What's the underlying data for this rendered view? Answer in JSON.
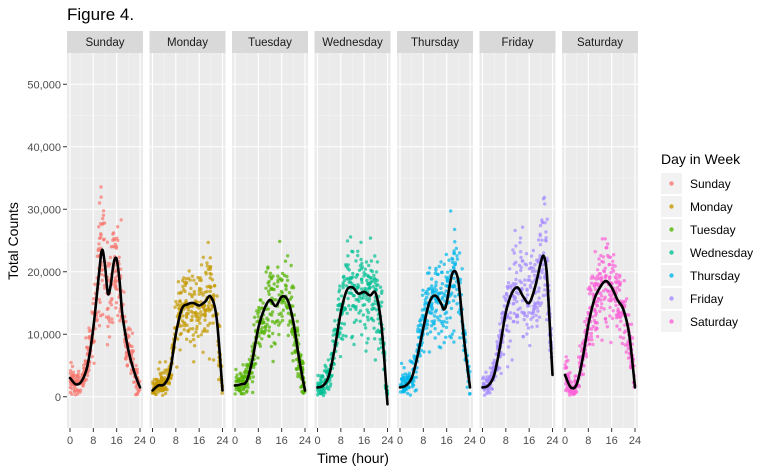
{
  "chart_data": {
    "type": "scatter",
    "title": "Figure 4.",
    "xlabel": "Time (hour)",
    "ylabel": "Total Counts",
    "xlim": [
      0,
      24
    ],
    "ylim": [
      -5000,
      55000
    ],
    "x_ticks": [
      0,
      8,
      16,
      24
    ],
    "x_tick_labels": [
      "0",
      "8",
      "16",
      "24"
    ],
    "y_ticks": [
      0,
      10000,
      20000,
      30000,
      40000,
      50000
    ],
    "y_tick_labels": [
      "0",
      "10,000",
      "20,000",
      "30,000",
      "40,000",
      "50,000"
    ],
    "grid": true,
    "facet_by": "Day in Week",
    "legend": {
      "title": "Day in Week",
      "position": "right",
      "entries": [
        "Sunday",
        "Monday",
        "Tuesday",
        "Wednesday",
        "Thursday",
        "Friday",
        "Saturday"
      ]
    },
    "series": [
      {
        "name": "Sunday",
        "color": "#F8766D",
        "x": [
          0,
          2,
          4,
          6,
          8,
          10,
          11,
          12,
          13,
          14,
          15,
          16,
          17,
          18,
          20,
          22,
          24
        ],
        "y": [
          3000,
          2000,
          2500,
          5000,
          11000,
          20000,
          23500,
          21000,
          16500,
          18000,
          21500,
          22000,
          18500,
          13000,
          7500,
          4000,
          1500
        ]
      },
      {
        "name": "Monday",
        "color": "#C49A00",
        "x": [
          0,
          2,
          4,
          6,
          8,
          10,
          12,
          14,
          16,
          18,
          20,
          22,
          24
        ],
        "y": [
          1000,
          1800,
          2000,
          4000,
          10000,
          14000,
          14800,
          15000,
          14600,
          15200,
          16000,
          12500,
          1000
        ]
      },
      {
        "name": "Tuesday",
        "color": "#53B400",
        "x": [
          0,
          2,
          4,
          6,
          8,
          10,
          12,
          14,
          16,
          18,
          20,
          22,
          24
        ],
        "y": [
          1800,
          2000,
          2500,
          6000,
          11000,
          14000,
          15500,
          14500,
          16000,
          15500,
          12000,
          6000,
          1000
        ]
      },
      {
        "name": "Wednesday",
        "color": "#00C094",
        "x": [
          0,
          2,
          4,
          6,
          8,
          10,
          12,
          14,
          16,
          18,
          20,
          22,
          24
        ],
        "y": [
          1500,
          1800,
          3500,
          8000,
          13500,
          17000,
          17500,
          16500,
          16800,
          16200,
          16500,
          11000,
          -1200
        ]
      },
      {
        "name": "Thursday",
        "color": "#00B6EB",
        "x": [
          0,
          2,
          4,
          6,
          8,
          10,
          12,
          14,
          15,
          16,
          18,
          20,
          22,
          24
        ],
        "y": [
          1500,
          1800,
          3000,
          6500,
          11000,
          15000,
          16200,
          15000,
          14000,
          15000,
          19800,
          18500,
          9000,
          1500
        ]
      },
      {
        "name": "Friday",
        "color": "#A58AFF",
        "x": [
          0,
          2,
          4,
          6,
          8,
          10,
          12,
          14,
          16,
          18,
          20,
          21,
          22,
          23,
          24
        ],
        "y": [
          1500,
          1800,
          3500,
          8000,
          13500,
          16500,
          17500,
          16000,
          15000,
          17500,
          21500,
          22500,
          20000,
          12000,
          3500
        ]
      },
      {
        "name": "Saturday",
        "color": "#FB61D7",
        "x": [
          0,
          2,
          4,
          6,
          8,
          10,
          12,
          14,
          16,
          18,
          20,
          22,
          24
        ],
        "y": [
          3500,
          1500,
          2000,
          6000,
          11500,
          15500,
          17500,
          18500,
          17500,
          15500,
          14000,
          10000,
          1500
        ]
      }
    ]
  }
}
